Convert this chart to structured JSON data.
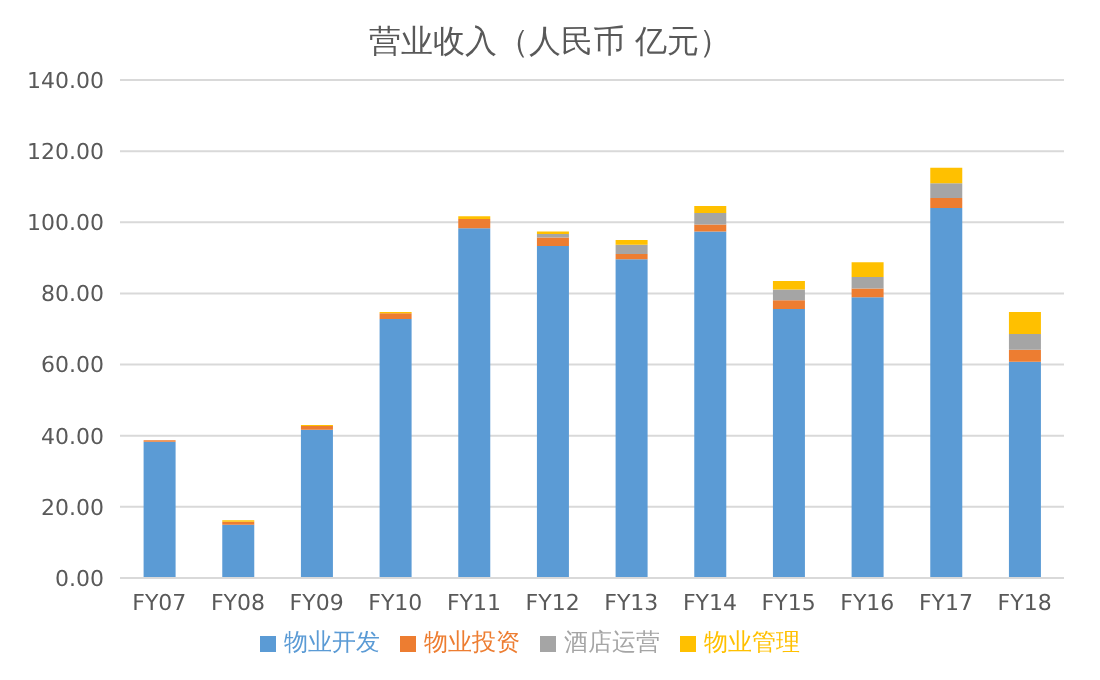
{
  "chart_data": {
    "type": "bar",
    "title": "营业收入（人民币 亿元）",
    "stacked": true,
    "categories": [
      "FY07",
      "FY08",
      "FY09",
      "FY10",
      "FY11",
      "FY12",
      "FY13",
      "FY14",
      "FY15",
      "FY16",
      "FY17",
      "FY18"
    ],
    "series": [
      {
        "name": "物业开发",
        "color": "#5b9bd5",
        "values": [
          38.3,
          15.0,
          41.7,
          72.8,
          98.3,
          93.3,
          89.6,
          97.4,
          75.6,
          78.9,
          104.0,
          60.8
        ]
      },
      {
        "name": "物业投资",
        "color": "#ed7d31",
        "values": [
          0.4,
          0.8,
          1.0,
          1.6,
          2.6,
          2.4,
          1.5,
          2.0,
          2.5,
          2.5,
          2.8,
          3.4
        ]
      },
      {
        "name": "酒店运营",
        "color": "#a5a5a5",
        "values": [
          0,
          0,
          0,
          0,
          0,
          1.0,
          2.6,
          3.2,
          3.0,
          3.2,
          4.2,
          4.4
        ]
      },
      {
        "name": "物业管理",
        "color": "#ffc000",
        "values": [
          0,
          0.4,
          0.3,
          0.4,
          0.8,
          0.7,
          1.3,
          2.0,
          2.4,
          4.2,
          4.3,
          6.2
        ]
      }
    ],
    "ylim": [
      0,
      140
    ],
    "yticks": [
      {
        "value": 0,
        "label": "0.00"
      },
      {
        "value": 20,
        "label": "20.00"
      },
      {
        "value": 40,
        "label": "40.00"
      },
      {
        "value": 60,
        "label": "60.00"
      },
      {
        "value": 80,
        "label": "80.00"
      },
      {
        "value": 100,
        "label": "100.00"
      },
      {
        "value": 120,
        "label": "120.00"
      },
      {
        "value": 140,
        "label": "140.00"
      }
    ],
    "grid": "y",
    "legend": "bottom"
  }
}
